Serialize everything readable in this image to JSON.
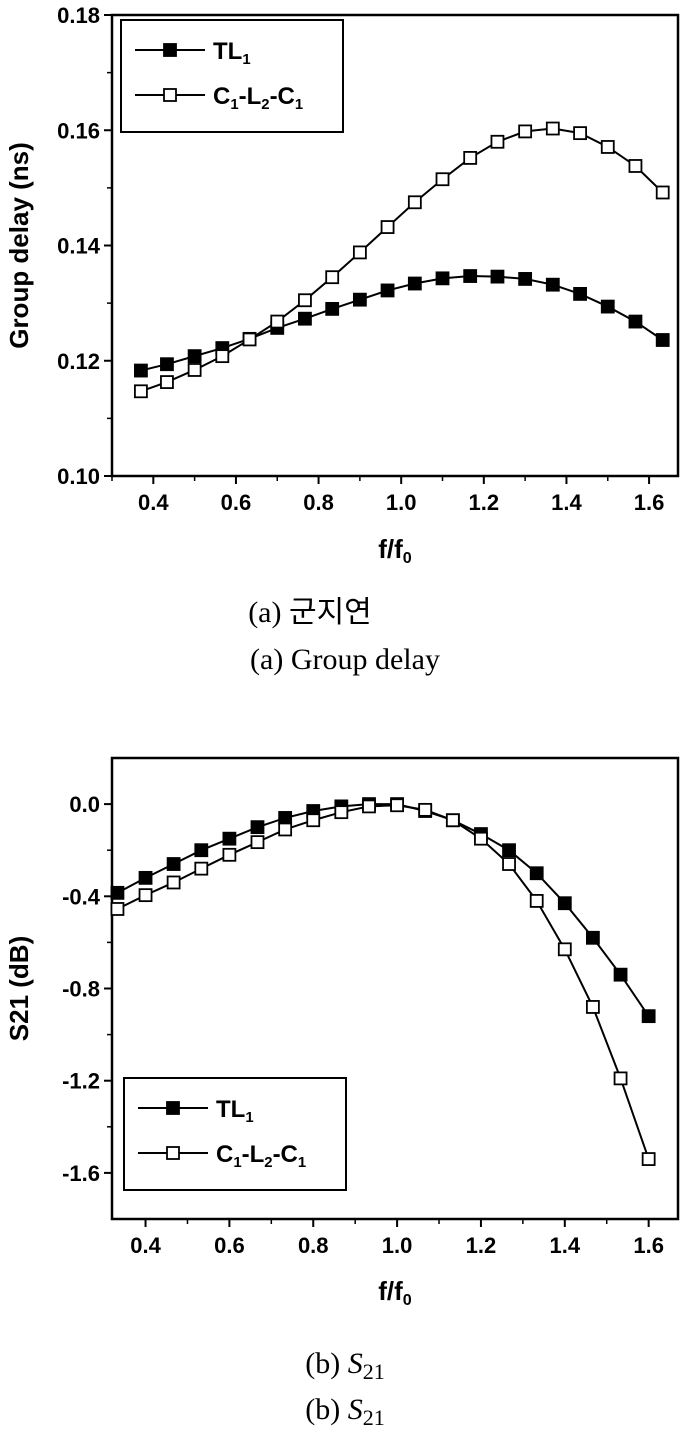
{
  "chart_data": [
    {
      "type": "line",
      "xlabel_main": "f/f",
      "xlabel_sub": "0",
      "ylabel": "Group delay (ns)",
      "xlim": [
        0.3,
        1.67
      ],
      "ylim": [
        0.1,
        0.18
      ],
      "xticks": [
        "0.4",
        "0.6",
        "0.8",
        "1.0",
        "1.2",
        "1.4",
        "1.6"
      ],
      "yticks": [
        "0.10",
        "0.12",
        "0.14",
        "0.16",
        "0.18"
      ],
      "legend_position": "top-left",
      "caption_line1": "(a)  군지연",
      "caption_line2": "(a)  Group  delay",
      "series": [
        {
          "legend_main": "TL",
          "legend_sub": "1",
          "marker": "filled-square",
          "x": [
            0.37,
            0.433,
            0.5,
            0.567,
            0.633,
            0.7,
            0.767,
            0.833,
            0.9,
            0.967,
            1.033,
            1.1,
            1.167,
            1.233,
            1.3,
            1.367,
            1.433,
            1.5,
            1.567,
            1.633
          ],
          "values": [
            0.1183,
            0.1194,
            0.1208,
            0.1222,
            0.1238,
            0.1257,
            0.1273,
            0.129,
            0.1306,
            0.1322,
            0.1334,
            0.1343,
            0.1347,
            0.1346,
            0.1342,
            0.1332,
            0.1316,
            0.1294,
            0.1268,
            0.1236
          ]
        },
        {
          "legend_main": [
            "C",
            "-L",
            "-C"
          ],
          "legend_sub": [
            "1",
            "2",
            "1"
          ],
          "marker": "open-square",
          "x": [
            0.37,
            0.433,
            0.5,
            0.567,
            0.633,
            0.7,
            0.767,
            0.833,
            0.9,
            0.967,
            1.033,
            1.1,
            1.167,
            1.233,
            1.3,
            1.367,
            1.433,
            1.5,
            1.567,
            1.633
          ],
          "values": [
            0.1147,
            0.1163,
            0.1184,
            0.1208,
            0.1237,
            0.1268,
            0.1305,
            0.1345,
            0.1388,
            0.1432,
            0.1475,
            0.1515,
            0.1552,
            0.158,
            0.1598,
            0.1603,
            0.1595,
            0.1571,
            0.1538,
            0.1492
          ]
        }
      ]
    },
    {
      "type": "line",
      "xlabel_main": "f/f",
      "xlabel_sub": "0",
      "ylabel": "S21 (dB)",
      "xlim": [
        0.32,
        1.67
      ],
      "ylim": [
        -1.8,
        0.2
      ],
      "xticks": [
        "0.4",
        "0.6",
        "0.8",
        "1.0",
        "1.2",
        "1.4",
        "1.6"
      ],
      "yticks": [
        "0.0",
        "-0.4",
        "-0.8",
        "-1.2",
        "-1.6"
      ],
      "legend_position": "bottom-left",
      "caption_line1_label": "(b)  ",
      "caption_line1_sym": "S",
      "caption_line1_sub": "21",
      "caption_line2_label": "(b)  ",
      "caption_line2_sym": "S",
      "caption_line2_sub": "21",
      "series": [
        {
          "legend_main": "TL",
          "legend_sub": "1",
          "marker": "filled-square",
          "x": [
            0.333,
            0.4,
            0.467,
            0.533,
            0.6,
            0.667,
            0.733,
            0.8,
            0.867,
            0.933,
            1.0,
            1.067,
            1.133,
            1.2,
            1.267,
            1.333,
            1.4,
            1.467,
            1.533,
            1.6
          ],
          "values": [
            -0.385,
            -0.32,
            -0.26,
            -0.2,
            -0.15,
            -0.1,
            -0.06,
            -0.03,
            -0.01,
            0.0,
            0.0,
            -0.03,
            -0.07,
            -0.13,
            -0.2,
            -0.3,
            -0.43,
            -0.58,
            -0.74,
            -0.92
          ]
        },
        {
          "legend_main": [
            "C",
            "-L",
            "-C"
          ],
          "legend_sub": [
            "1",
            "2",
            "1"
          ],
          "marker": "open-square",
          "x": [
            0.333,
            0.4,
            0.467,
            0.533,
            0.6,
            0.667,
            0.733,
            0.8,
            0.867,
            0.933,
            1.0,
            1.067,
            1.133,
            1.2,
            1.267,
            1.333,
            1.4,
            1.467,
            1.533,
            1.6
          ],
          "values": [
            -0.455,
            -0.395,
            -0.34,
            -0.28,
            -0.22,
            -0.165,
            -0.11,
            -0.07,
            -0.035,
            -0.01,
            -0.005,
            -0.025,
            -0.07,
            -0.15,
            -0.26,
            -0.42,
            -0.63,
            -0.88,
            -1.19,
            -1.54
          ]
        }
      ]
    }
  ]
}
